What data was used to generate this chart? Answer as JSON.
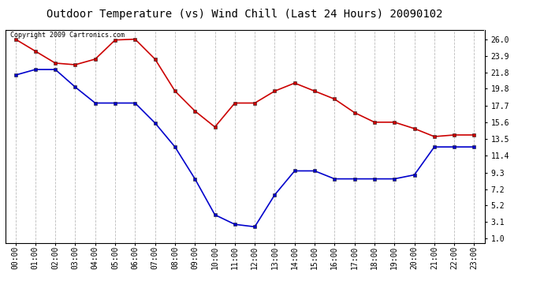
{
  "title": "Outdoor Temperature (vs) Wind Chill (Last 24 Hours) 20090102",
  "copyright_text": "Copyright 2009 Cartronics.com",
  "x_labels": [
    "00:00",
    "01:00",
    "02:00",
    "03:00",
    "04:00",
    "05:00",
    "06:00",
    "07:00",
    "08:00",
    "09:00",
    "10:00",
    "11:00",
    "12:00",
    "13:00",
    "14:00",
    "15:00",
    "16:00",
    "17:00",
    "18:00",
    "19:00",
    "20:00",
    "21:00",
    "22:00",
    "23:00"
  ],
  "y_ticks": [
    1.0,
    3.1,
    5.2,
    7.2,
    9.3,
    11.4,
    13.5,
    15.6,
    17.7,
    19.8,
    21.8,
    23.9,
    26.0
  ],
  "ylim": [
    0.5,
    27.2
  ],
  "temp_red": [
    26.0,
    24.5,
    23.0,
    22.8,
    23.5,
    25.9,
    26.0,
    23.5,
    19.5,
    17.0,
    15.0,
    18.0,
    18.0,
    19.5,
    20.5,
    19.5,
    18.5,
    16.8,
    15.6,
    15.6,
    14.8,
    13.8,
    14.0,
    14.0
  ],
  "wind_chill_blue": [
    21.5,
    22.2,
    22.2,
    20.0,
    18.0,
    18.0,
    18.0,
    15.5,
    12.5,
    8.5,
    4.0,
    2.8,
    2.5,
    6.5,
    9.5,
    9.5,
    8.5,
    8.5,
    8.5,
    8.5,
    9.0,
    12.5,
    12.5,
    12.5
  ],
  "red_color": "#cc0000",
  "blue_color": "#0000cc",
  "marker": "s",
  "marker_size": 3,
  "line_width": 1.2,
  "bg_color": "#ffffff",
  "grid_color": "#bbbbbb",
  "title_fontsize": 10,
  "tick_fontsize": 7,
  "copyright_fontsize": 6
}
